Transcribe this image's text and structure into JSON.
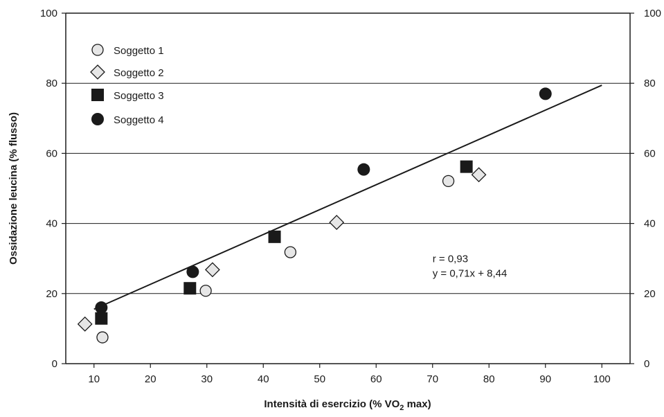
{
  "chart_data": {
    "type": "scatter",
    "xlabel": "Intensità di esercizio (% VO",
    "xlabel_sub": "2",
    "xlabel_tail": " max)",
    "ylabel": "Ossidazione leucina (% flusso)",
    "xlim": [
      5,
      105
    ],
    "ylim": [
      0,
      100
    ],
    "x_ticks": [
      "10",
      "20",
      "30",
      "40",
      "50",
      "60",
      "70",
      "80",
      "90",
      "100"
    ],
    "y_ticks": [
      "0",
      "20",
      "40",
      "60",
      "80",
      "100"
    ],
    "x_tick_values": [
      10,
      20,
      30,
      40,
      50,
      60,
      70,
      80,
      90,
      100
    ],
    "y_tick_values": [
      0,
      20,
      40,
      60,
      80,
      100
    ],
    "y_ticks_right": [
      "0",
      "20",
      "40",
      "60",
      "80",
      "100"
    ],
    "grid": "horizontal",
    "legend_position": "top-left",
    "series": [
      {
        "name": "Soggetto 1",
        "marker": "circle-open",
        "fill": "#e6e6e6",
        "points": [
          [
            11.5,
            7.5
          ],
          [
            29.8,
            20.8
          ],
          [
            44.8,
            31.8
          ],
          [
            72.8,
            52.1
          ]
        ]
      },
      {
        "name": "Soggetto 2",
        "marker": "diamond",
        "fill": "#e6e6e6",
        "points": [
          [
            8.4,
            11.3
          ],
          [
            31.0,
            26.8
          ],
          [
            53.0,
            40.3
          ],
          [
            78.2,
            53.9
          ]
        ]
      },
      {
        "name": "Soggetto 3",
        "marker": "square",
        "fill": "#1a1a1a",
        "points": [
          [
            11.3,
            12.9
          ],
          [
            27.0,
            21.5
          ],
          [
            42.0,
            36.2
          ],
          [
            76.0,
            56.2
          ]
        ]
      },
      {
        "name": "Soggetto 4",
        "marker": "circle-filled",
        "fill": "#1a1a1a",
        "points": [
          [
            11.3,
            16.0
          ],
          [
            27.5,
            26.2
          ],
          [
            57.8,
            55.4
          ],
          [
            90.0,
            77.0
          ]
        ]
      }
    ],
    "regression": {
      "slope": 0.71,
      "intercept": 8.44,
      "x_start": 10,
      "x_end": 100
    },
    "annotation": [
      "r = 0,93",
      "y = 0,71x + 8,44"
    ],
    "annotation_at": [
      70,
      29
    ]
  }
}
